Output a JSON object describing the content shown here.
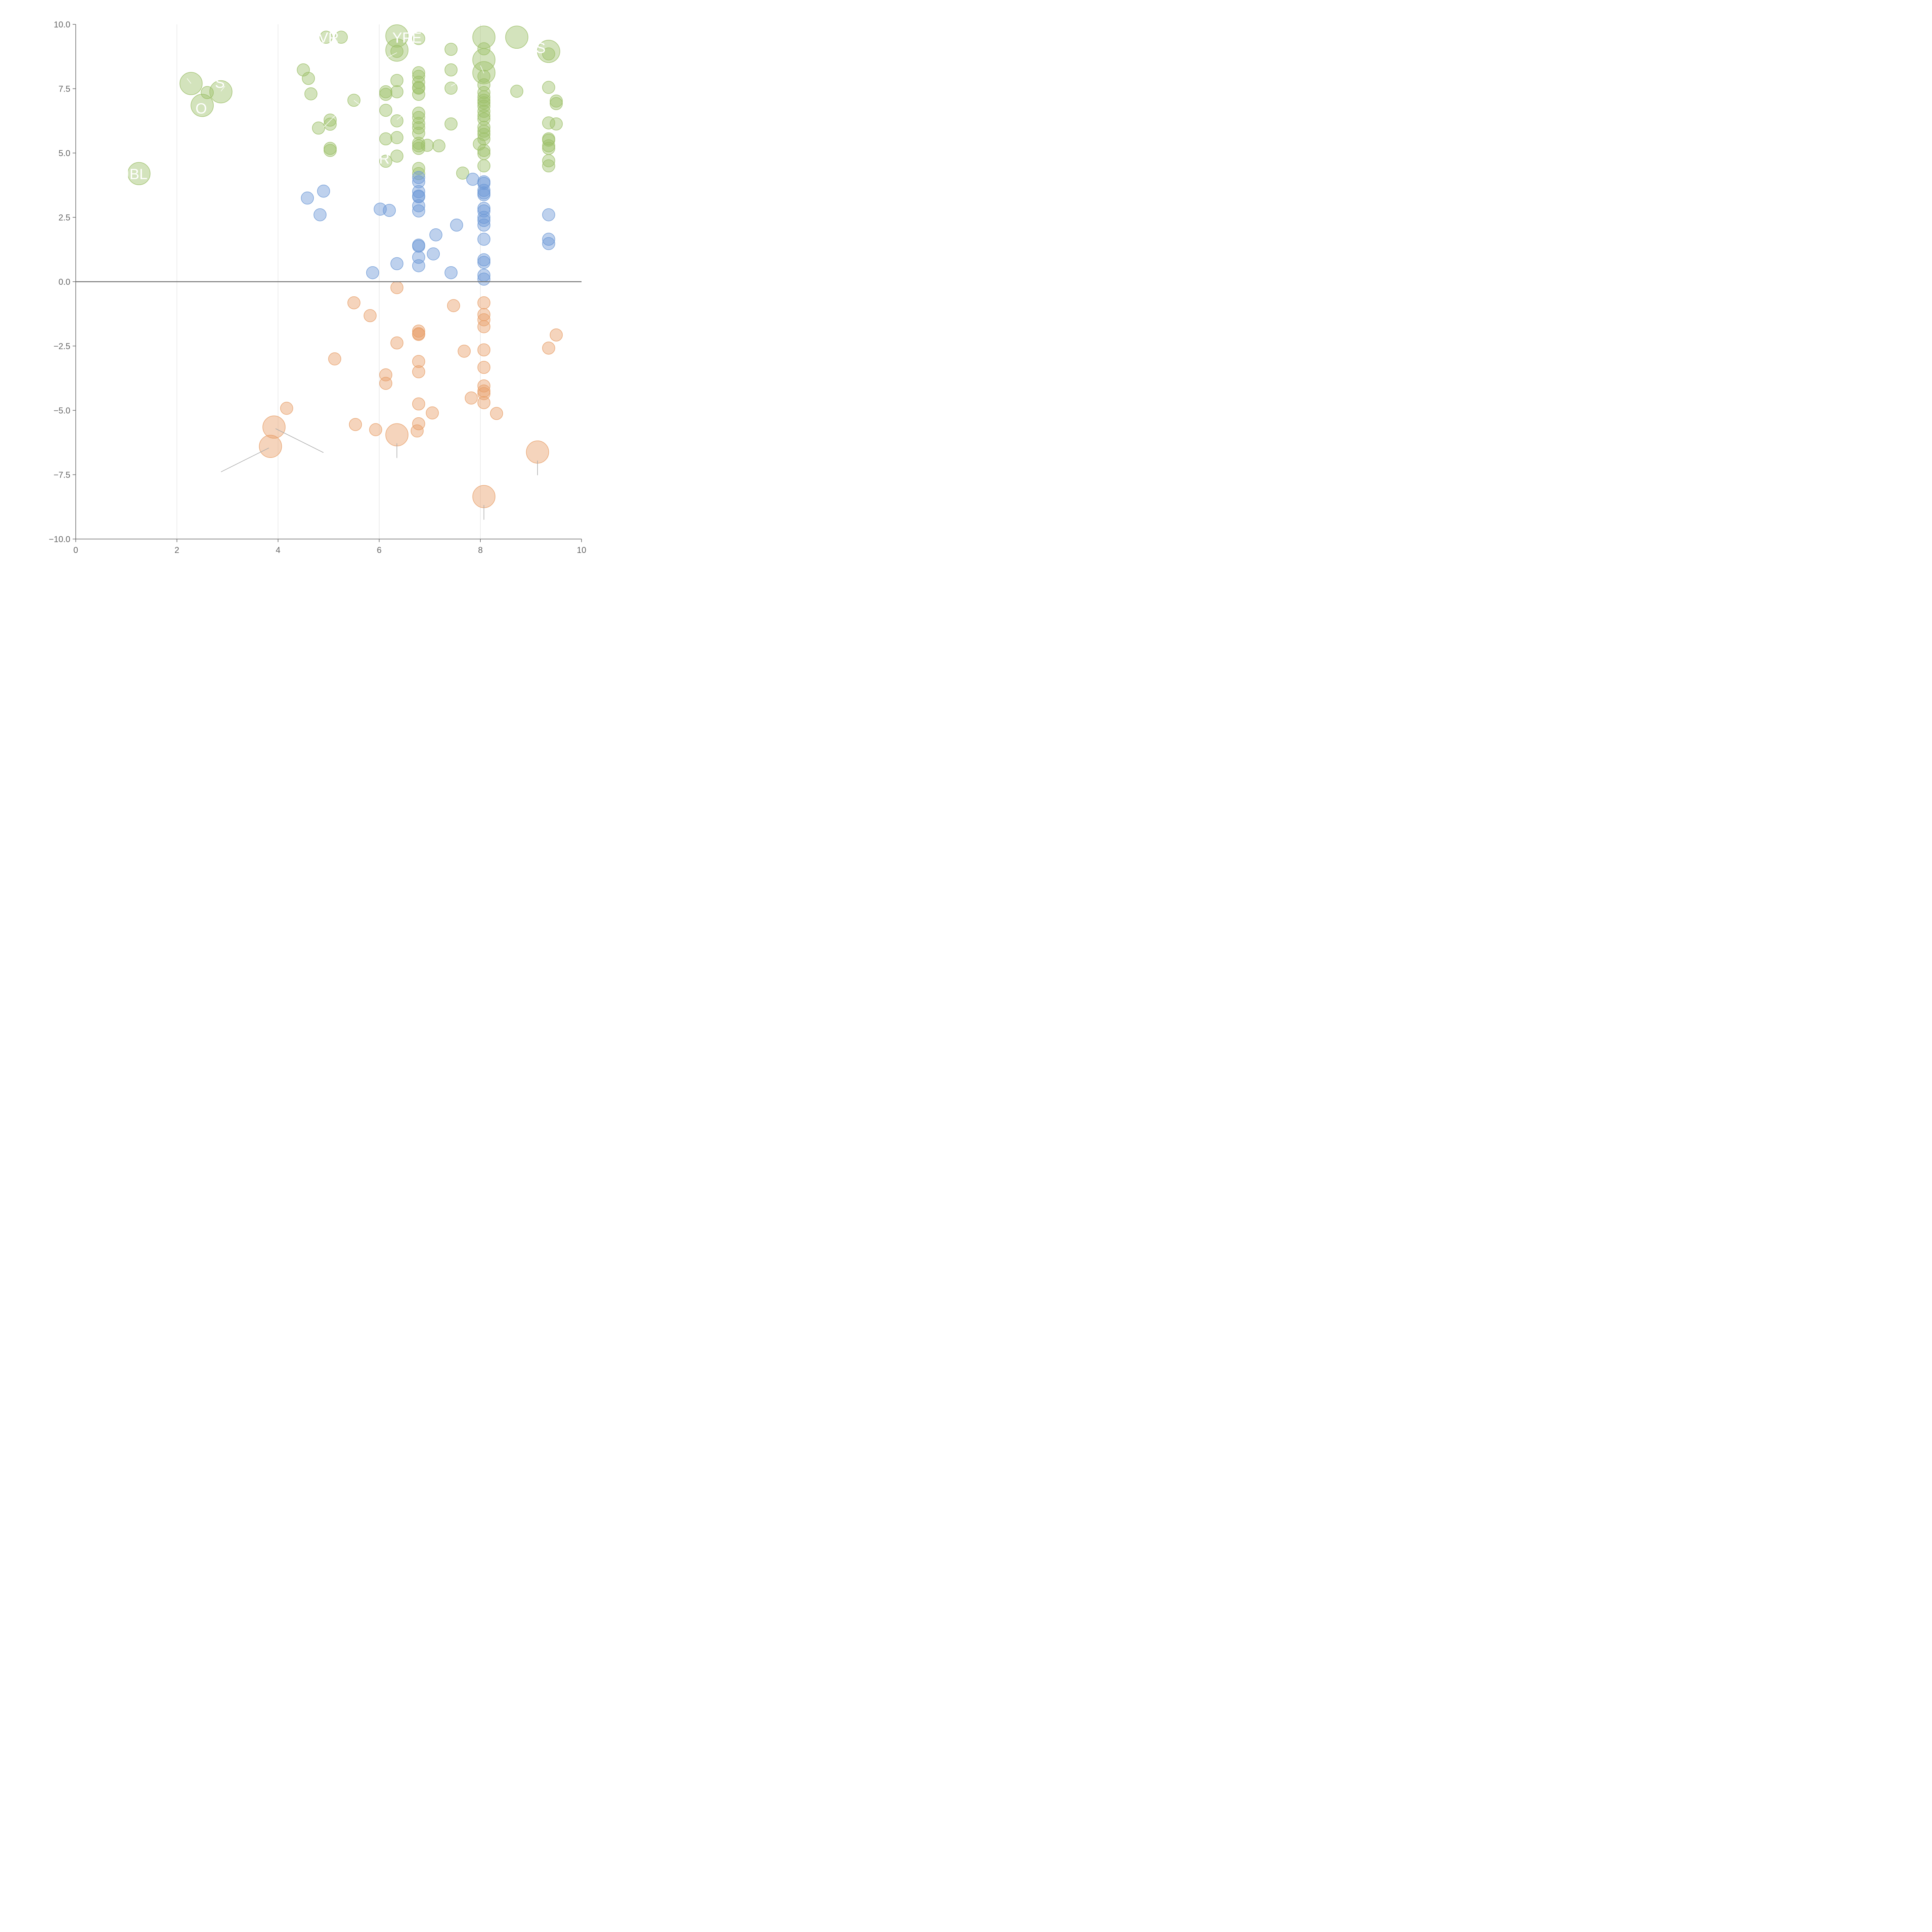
{
  "chart_data": {
    "type": "scatter",
    "xlim": [
      0,
      10
    ],
    "ylim": [
      -10,
      10
    ],
    "x_ticks": [
      "0",
      "2",
      "4",
      "6",
      "8",
      "10"
    ],
    "y_ticks": [
      "10.0",
      "7.5",
      "5.0",
      "2.5",
      "0.0",
      "−2.5",
      "−5.0",
      "−7.5",
      "−10.0"
    ],
    "grid": "vertical",
    "legend": "none",
    "colors": {
      "green": "#9dc06a",
      "blue": "#6f9ad6",
      "orange": "#e8a06a"
    },
    "series": [
      {
        "color_key": "green",
        "points": [
          [
            1.25,
            4.2,
            2
          ],
          [
            2.28,
            7.7,
            2
          ],
          [
            2.5,
            6.85,
            2
          ],
          [
            2.6,
            7.35,
            1
          ],
          [
            2.87,
            7.38,
            2
          ],
          [
            4.95,
            9.5,
            1
          ],
          [
            5.25,
            9.5,
            1
          ],
          [
            6.35,
            9.55,
            2
          ],
          [
            6.35,
            9.0,
            2
          ],
          [
            6.35,
            8.95,
            1
          ],
          [
            6.78,
            9.45,
            1
          ],
          [
            8.07,
            9.5,
            2
          ],
          [
            8.72,
            9.5,
            2
          ],
          [
            9.35,
            8.95,
            2
          ],
          [
            9.35,
            8.85,
            1
          ],
          [
            8.07,
            9.05,
            1
          ],
          [
            8.07,
            8.62,
            2
          ],
          [
            8.07,
            8.12,
            2
          ],
          [
            7.42,
            9.03,
            1
          ],
          [
            7.42,
            8.23,
            1
          ],
          [
            4.5,
            8.23,
            1
          ],
          [
            4.6,
            7.9,
            1
          ],
          [
            4.65,
            7.3,
            1
          ],
          [
            5.5,
            7.05,
            1
          ],
          [
            6.35,
            7.82,
            1
          ],
          [
            6.35,
            7.38,
            1
          ],
          [
            6.13,
            7.38,
            1
          ],
          [
            6.13,
            7.28,
            1
          ],
          [
            6.13,
            6.66,
            1
          ],
          [
            6.35,
            6.25,
            1
          ],
          [
            6.13,
            5.55,
            1
          ],
          [
            6.35,
            5.6,
            1
          ],
          [
            6.35,
            4.88,
            1
          ],
          [
            6.13,
            4.68,
            1
          ],
          [
            4.8,
            5.97,
            1
          ],
          [
            5.03,
            6.28,
            1
          ],
          [
            5.03,
            6.12,
            1
          ],
          [
            5.03,
            5.18,
            1
          ],
          [
            5.03,
            5.1,
            1
          ],
          [
            6.78,
            8.12,
            1
          ],
          [
            6.78,
            7.98,
            1
          ],
          [
            6.78,
            7.75,
            1
          ],
          [
            6.78,
            7.55,
            1
          ],
          [
            6.78,
            7.52,
            1
          ],
          [
            6.78,
            7.28,
            1
          ],
          [
            6.78,
            6.55,
            1
          ],
          [
            6.78,
            6.38,
            1
          ],
          [
            6.78,
            6.15,
            1
          ],
          [
            6.78,
            5.98,
            1
          ],
          [
            6.78,
            5.77,
            1
          ],
          [
            6.78,
            5.38,
            1
          ],
          [
            6.78,
            5.28,
            1
          ],
          [
            6.78,
            5.18,
            1
          ],
          [
            6.95,
            5.3,
            1
          ],
          [
            7.18,
            5.28,
            1
          ],
          [
            6.78,
            4.4,
            1
          ],
          [
            6.78,
            4.2,
            1
          ],
          [
            7.42,
            7.52,
            1
          ],
          [
            7.42,
            6.13,
            1
          ],
          [
            7.65,
            4.22,
            1
          ],
          [
            7.98,
            5.35,
            1
          ],
          [
            8.07,
            7.98,
            1
          ],
          [
            8.07,
            7.65,
            1
          ],
          [
            8.07,
            7.35,
            1
          ],
          [
            8.07,
            7.18,
            1
          ],
          [
            8.07,
            7.05,
            1
          ],
          [
            8.07,
            6.95,
            1
          ],
          [
            8.07,
            6.82,
            1
          ],
          [
            8.07,
            6.62,
            1
          ],
          [
            8.07,
            6.45,
            1
          ],
          [
            8.07,
            6.32,
            1
          ],
          [
            8.07,
            6.0,
            1
          ],
          [
            8.07,
            5.85,
            1
          ],
          [
            8.07,
            5.72,
            1
          ],
          [
            8.07,
            5.55,
            1
          ],
          [
            8.07,
            5.1,
            1
          ],
          [
            8.07,
            4.98,
            1
          ],
          [
            8.07,
            4.5,
            1
          ],
          [
            8.72,
            7.4,
            1
          ],
          [
            9.35,
            7.55,
            1
          ],
          [
            9.5,
            7.02,
            1
          ],
          [
            9.5,
            6.92,
            1
          ],
          [
            9.35,
            6.17,
            1
          ],
          [
            9.5,
            6.13,
            1
          ],
          [
            9.35,
            5.55,
            1
          ],
          [
            9.35,
            5.5,
            1
          ],
          [
            9.35,
            5.28,
            1
          ],
          [
            9.35,
            5.18,
            1
          ],
          [
            9.35,
            4.7,
            1
          ],
          [
            9.35,
            4.5,
            1
          ]
        ]
      },
      {
        "color_key": "blue",
        "points": [
          [
            4.58,
            3.25,
            1
          ],
          [
            4.9,
            3.52,
            1
          ],
          [
            4.83,
            2.6,
            1
          ],
          [
            5.87,
            0.35,
            1
          ],
          [
            6.02,
            2.82,
            1
          ],
          [
            6.2,
            2.77,
            1
          ],
          [
            6.35,
            0.7,
            1
          ],
          [
            6.78,
            4.05,
            1
          ],
          [
            6.78,
            3.88,
            1
          ],
          [
            6.78,
            3.5,
            1
          ],
          [
            6.78,
            3.33,
            1
          ],
          [
            6.78,
            3.3,
            1
          ],
          [
            6.78,
            2.95,
            1
          ],
          [
            6.78,
            2.75,
            1
          ],
          [
            6.78,
            1.42,
            1
          ],
          [
            6.78,
            1.38,
            1
          ],
          [
            6.78,
            0.95,
            1
          ],
          [
            6.78,
            0.62,
            1
          ],
          [
            7.07,
            1.08,
            1
          ],
          [
            7.12,
            1.82,
            1
          ],
          [
            7.42,
            0.35,
            1
          ],
          [
            7.53,
            2.2,
            1
          ],
          [
            7.85,
            3.98,
            1
          ],
          [
            8.07,
            3.88,
            1
          ],
          [
            8.07,
            3.82,
            1
          ],
          [
            8.07,
            3.55,
            1
          ],
          [
            8.07,
            3.45,
            1
          ],
          [
            8.07,
            3.38,
            1
          ],
          [
            8.07,
            2.85,
            1
          ],
          [
            8.07,
            2.75,
            1
          ],
          [
            8.07,
            2.5,
            1
          ],
          [
            8.07,
            2.38,
            1
          ],
          [
            8.07,
            2.2,
            1
          ],
          [
            8.07,
            1.65,
            1
          ],
          [
            8.07,
            0.85,
            1
          ],
          [
            8.07,
            0.75,
            1
          ],
          [
            8.07,
            0.25,
            1
          ],
          [
            8.07,
            0.1,
            1
          ],
          [
            9.35,
            2.6,
            1
          ],
          [
            9.35,
            1.65,
            1
          ],
          [
            9.35,
            1.48,
            1
          ]
        ]
      },
      {
        "color_key": "orange",
        "points": [
          [
            3.85,
            -6.4,
            2
          ],
          [
            3.92,
            -5.65,
            2
          ],
          [
            4.17,
            -4.92,
            1
          ],
          [
            5.12,
            -3.0,
            1
          ],
          [
            5.5,
            -0.82,
            1
          ],
          [
            5.53,
            -5.55,
            1
          ],
          [
            5.82,
            -1.32,
            1
          ],
          [
            5.93,
            -5.75,
            1
          ],
          [
            6.13,
            -3.62,
            1
          ],
          [
            6.13,
            -3.95,
            1
          ],
          [
            6.35,
            -0.23,
            1
          ],
          [
            6.35,
            -2.38,
            1
          ],
          [
            6.35,
            -5.95,
            2
          ],
          [
            6.75,
            -5.8,
            1
          ],
          [
            6.78,
            -1.92,
            1
          ],
          [
            6.78,
            -2.02,
            1
          ],
          [
            6.78,
            -2.05,
            1
          ],
          [
            6.78,
            -3.1,
            1
          ],
          [
            6.78,
            -3.5,
            1
          ],
          [
            6.78,
            -4.75,
            1
          ],
          [
            6.78,
            -5.52,
            1
          ],
          [
            7.05,
            -5.1,
            1
          ],
          [
            7.47,
            -0.93,
            1
          ],
          [
            7.68,
            -2.7,
            1
          ],
          [
            7.82,
            -4.52,
            1
          ],
          [
            8.07,
            -0.82,
            1
          ],
          [
            8.07,
            -1.28,
            1
          ],
          [
            8.07,
            -1.48,
            1
          ],
          [
            8.07,
            -1.75,
            1
          ],
          [
            8.07,
            -2.65,
            1
          ],
          [
            8.07,
            -3.33,
            1
          ],
          [
            8.07,
            -4.05,
            1
          ],
          [
            8.07,
            -4.25,
            1
          ],
          [
            8.07,
            -4.35,
            1
          ],
          [
            8.07,
            -4.7,
            1
          ],
          [
            8.07,
            -8.35,
            2
          ],
          [
            8.32,
            -5.12,
            1
          ],
          [
            9.13,
            -6.62,
            2
          ],
          [
            9.35,
            -2.58,
            1
          ],
          [
            9.5,
            -2.07,
            1
          ]
        ]
      }
    ],
    "labels": [
      {
        "text": "IBL",
        "x": 1.2,
        "y": 4.2
      },
      {
        "text": "O",
        "x": 2.48,
        "y": 6.75
      },
      {
        "text": "S",
        "x": 2.85,
        "y": 7.75
      },
      {
        "text": "VR",
        "x": 5.0,
        "y": 9.5
      },
      {
        "text": "YPE",
        "x": 6.55,
        "y": 9.5
      },
      {
        "text": "OS",
        "x": 9.08,
        "y": 9.1
      },
      {
        "text": "R",
        "x": 6.1,
        "y": 4.8
      }
    ]
  }
}
